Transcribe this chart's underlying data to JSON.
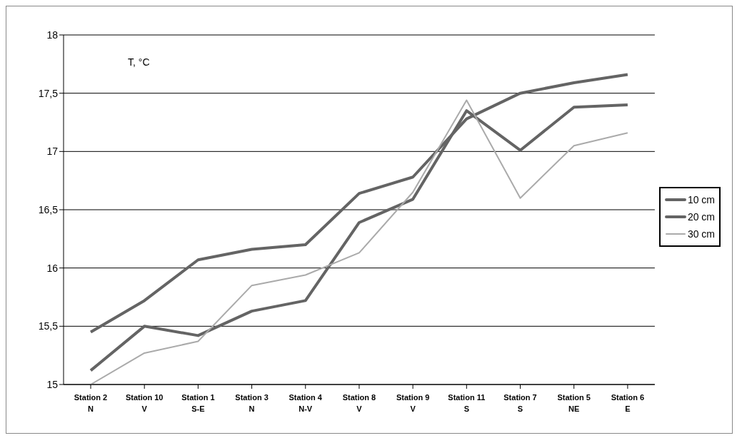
{
  "chart_data": {
    "type": "line",
    "categories": [
      "Station 2\nN",
      "Station 10\nV",
      "Station 1\nS-E",
      "Station 3\nN",
      "Station 4\nN-V",
      "Station 8\nV",
      "Station 9\nV",
      "Station 11\nS",
      "Station 7\nS",
      "Station 5\nNE",
      "Station 6\nE"
    ],
    "series": [
      {
        "name": "10 cm",
        "color": "#646464",
        "values": [
          15.45,
          15.72,
          16.07,
          16.16,
          16.2,
          16.64,
          16.78,
          17.28,
          17.5,
          17.59,
          17.66
        ]
      },
      {
        "name": "20 cm",
        "color": "#646464",
        "values": [
          15.12,
          15.5,
          15.42,
          15.63,
          15.72,
          16.39,
          16.59,
          17.35,
          17.01,
          17.38,
          17.4
        ]
      },
      {
        "name": "30 cm",
        "color": "#aaaaaa",
        "values": [
          15.0,
          15.27,
          15.37,
          15.85,
          15.94,
          16.13,
          16.65,
          17.44,
          16.6,
          17.05,
          17.16
        ]
      }
    ],
    "ylim": [
      15,
      18
    ],
    "yticks": [
      {
        "value": 15,
        "label": "15"
      },
      {
        "value": 15.5,
        "label": "15,5"
      },
      {
        "value": 16,
        "label": "16"
      },
      {
        "value": 16.5,
        "label": "16,5"
      },
      {
        "value": 17,
        "label": "17"
      },
      {
        "value": 17.5,
        "label": "17,5"
      },
      {
        "value": 18,
        "label": "18"
      }
    ],
    "annotations": [
      "T, °C"
    ],
    "grid": "y",
    "legend": "right",
    "marker": "none",
    "line_style": "solid"
  }
}
